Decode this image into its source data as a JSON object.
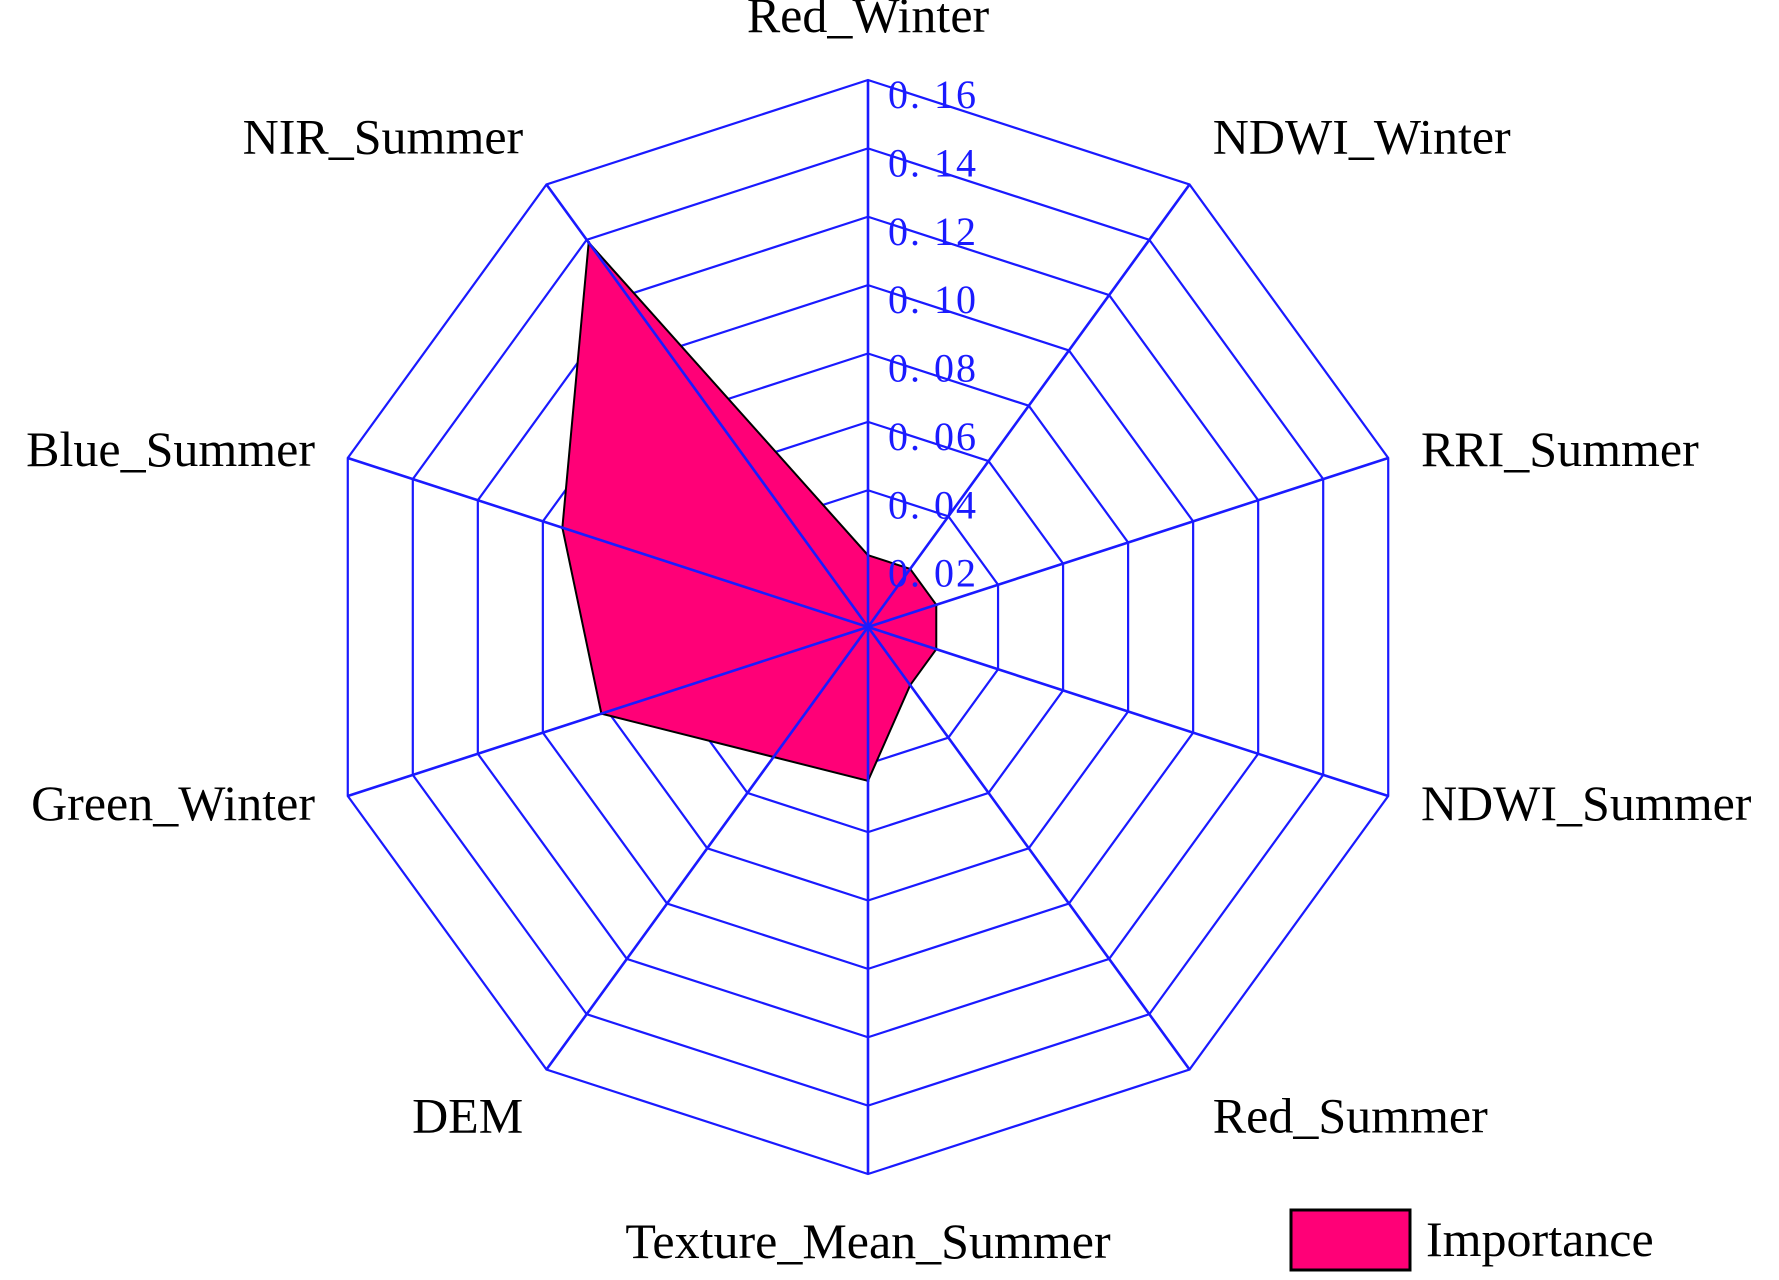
{
  "chart_data": {
    "type": "radar",
    "title": "",
    "axes": [
      "Red_Winter",
      "NDWI_Winter",
      "RRI_Summer",
      "NDWI_Summer",
      "Red_Summer",
      "Texture_Mean_Summer",
      "DEM",
      "Green_Winter",
      "Blue_Summer",
      "NIR_Summer"
    ],
    "radial_ticks": [
      "0. 02",
      "0. 04",
      "0. 06",
      "0. 08",
      "0. 10",
      "0. 12",
      "0. 14",
      "0. 16"
    ],
    "radial_range": [
      0,
      0.16
    ],
    "radial_step": 0.02,
    "grid": true,
    "series": [
      {
        "name": "Importance",
        "values": [
          0.021,
          0.021,
          0.021,
          0.021,
          0.021,
          0.045,
          0.047,
          0.082,
          0.094,
          0.139
        ],
        "color": "#ff0077"
      }
    ],
    "legend": {
      "position": "bottom-right",
      "label": "Importance"
    },
    "grid_color": "#1a1aff",
    "outline_color": "#000000"
  }
}
